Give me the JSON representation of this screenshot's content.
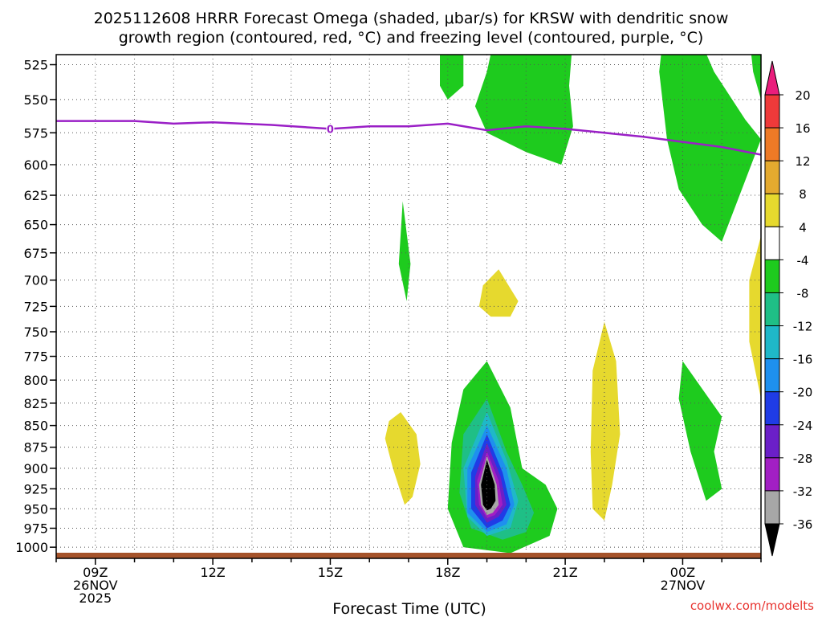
{
  "chart_data": {
    "type": "heatmap",
    "title_line1": "2025112608 HRRR Forecast Omega (shaded, μbar/s) for KRSW with dendritic snow",
    "title_line2": "growth region (contoured, red, °C) and freezing level (contoured, purple, °C)",
    "xlabel": "Forecast Time (UTC)",
    "credit": "coolwx.com/modelts",
    "x_ticks": [
      {
        "hour": 9,
        "lines": [
          "09Z",
          "26NOV",
          "2025"
        ]
      },
      {
        "hour": 12,
        "lines": [
          "12Z"
        ]
      },
      {
        "hour": 15,
        "lines": [
          "15Z"
        ]
      },
      {
        "hour": 18,
        "lines": [
          "18Z"
        ]
      },
      {
        "hour": 21,
        "lines": [
          "21Z"
        ]
      },
      {
        "hour": 24,
        "lines": [
          "00Z",
          "27NOV"
        ]
      }
    ],
    "xlim": [
      8,
      26.0
    ],
    "y_ticks": [
      525,
      550,
      575,
      600,
      625,
      650,
      675,
      700,
      725,
      750,
      775,
      800,
      825,
      850,
      875,
      900,
      925,
      950,
      975,
      1000
    ],
    "ylim_hpa": [
      518,
      1015
    ],
    "colorbar": {
      "labels": [
        "20",
        "16",
        "12",
        "8",
        "4",
        "-4",
        "-8",
        "-12",
        "-16",
        "-20",
        "-24",
        "-28",
        "-32",
        "-36"
      ],
      "colors": [
        "#ef3a3a",
        "#ee7a26",
        "#e4aa2f",
        "#e6d92e",
        "#ffffff",
        "#1ecb1e",
        "#1fbf86",
        "#1fb8c8",
        "#1e90ee",
        "#1f3ce6",
        "#6b1fc8",
        "#a21fc4",
        "#a7a7a7"
      ],
      "top_color": "#ea1d7c",
      "bottom_color": "#000000"
    },
    "freezing_level": {
      "color": "#9a1fc6",
      "label": "0",
      "label_hour": 15.0,
      "points": [
        [
          8,
          566
        ],
        [
          10,
          566
        ],
        [
          11,
          568
        ],
        [
          12,
          567
        ],
        [
          13.5,
          569
        ],
        [
          15,
          572
        ],
        [
          16,
          570
        ],
        [
          17,
          570
        ],
        [
          18,
          568
        ],
        [
          19,
          573
        ],
        [
          20,
          570
        ],
        [
          21,
          572
        ],
        [
          22,
          575
        ],
        [
          23,
          578
        ],
        [
          24,
          582
        ],
        [
          25,
          586
        ],
        [
          26,
          592
        ]
      ]
    },
    "omega_regions": [
      {
        "category": "-8 to -4",
        "color": "#1ecb1e",
        "poly": [
          [
            17.8,
            505
          ],
          [
            18.4,
            505
          ],
          [
            18.4,
            540
          ],
          [
            18.0,
            550
          ],
          [
            17.8,
            540
          ]
        ]
      },
      {
        "category": "-8 to -4",
        "color": "#1ecb1e",
        "poly": [
          [
            19.2,
            505
          ],
          [
            21.2,
            505
          ],
          [
            21.1,
            540
          ],
          [
            21.2,
            570
          ],
          [
            20.9,
            600
          ],
          [
            20.0,
            590
          ],
          [
            19.0,
            575
          ],
          [
            18.7,
            555
          ],
          [
            19.0,
            530
          ]
        ]
      },
      {
        "category": "-8 to -4",
        "color": "#1ecb1e",
        "poly": [
          [
            23.5,
            505
          ],
          [
            24.4,
            505
          ],
          [
            24.8,
            530
          ],
          [
            25.6,
            565
          ],
          [
            26.0,
            580
          ],
          [
            26.0,
            580
          ],
          [
            25.0,
            665
          ],
          [
            24.5,
            650
          ],
          [
            23.9,
            620
          ],
          [
            23.6,
            580
          ],
          [
            23.4,
            530
          ]
        ]
      },
      {
        "category": "-8 to -4",
        "color": "#1ecb1e",
        "poly": [
          [
            25.7,
            505
          ],
          [
            26.0,
            505
          ],
          [
            26.0,
            550
          ],
          [
            25.8,
            530
          ]
        ]
      },
      {
        "category": "-8 to -4",
        "color": "#1ecb1e",
        "poly": [
          [
            16.85,
            630
          ],
          [
            17.05,
            685
          ],
          [
            16.95,
            720
          ],
          [
            16.75,
            685
          ]
        ]
      },
      {
        "category": "-8 to -4",
        "color": "#1ecb1e",
        "poly": [
          [
            24.0,
            780
          ],
          [
            25.0,
            840
          ],
          [
            24.8,
            880
          ],
          [
            25.0,
            925
          ],
          [
            24.6,
            940
          ],
          [
            24.2,
            880
          ],
          [
            23.9,
            820
          ]
        ]
      },
      {
        "category": "-8 to -4",
        "color": "#1ecb1e",
        "poly": [
          [
            19.0,
            780
          ],
          [
            19.6,
            830
          ],
          [
            19.9,
            900
          ],
          [
            20.5,
            920
          ],
          [
            20.8,
            950
          ],
          [
            20.6,
            985
          ],
          [
            19.6,
            1008
          ],
          [
            18.4,
            1000
          ],
          [
            18.0,
            950
          ],
          [
            18.1,
            870
          ],
          [
            18.4,
            810
          ]
        ]
      },
      {
        "category": "-12 to -8",
        "color": "#1fbf86",
        "poly": [
          [
            19.0,
            820
          ],
          [
            19.5,
            880
          ],
          [
            19.9,
            920
          ],
          [
            20.2,
            955
          ],
          [
            20.0,
            980
          ],
          [
            19.4,
            990
          ],
          [
            18.6,
            975
          ],
          [
            18.3,
            930
          ],
          [
            18.4,
            860
          ]
        ]
      },
      {
        "category": "-16 to -12",
        "color": "#1fb8c8",
        "poly": [
          [
            19.0,
            835
          ],
          [
            19.5,
            890
          ],
          [
            19.8,
            940
          ],
          [
            19.6,
            975
          ],
          [
            19.0,
            985
          ],
          [
            18.5,
            960
          ],
          [
            18.4,
            900
          ]
        ]
      },
      {
        "category": "-20 to -16",
        "color": "#1e90ee",
        "poly": [
          [
            19.0,
            850
          ],
          [
            19.5,
            900
          ],
          [
            19.7,
            945
          ],
          [
            19.5,
            970
          ],
          [
            19.0,
            980
          ],
          [
            18.5,
            955
          ],
          [
            18.5,
            900
          ]
        ]
      },
      {
        "category": "-24 to -20",
        "color": "#1f3ce6",
        "poly": [
          [
            19.0,
            860
          ],
          [
            19.4,
            905
          ],
          [
            19.6,
            945
          ],
          [
            19.4,
            965
          ],
          [
            19.0,
            975
          ],
          [
            18.6,
            950
          ],
          [
            18.6,
            905
          ]
        ]
      },
      {
        "category": "-28 to -24",
        "color": "#6b1fc8",
        "poly": [
          [
            19.0,
            870
          ],
          [
            19.35,
            910
          ],
          [
            19.5,
            945
          ],
          [
            19.3,
            960
          ],
          [
            19.0,
            968
          ],
          [
            18.7,
            945
          ],
          [
            18.7,
            910
          ]
        ]
      },
      {
        "category": "-32 to -28",
        "color": "#a21fc4",
        "poly": [
          [
            19.0,
            880
          ],
          [
            19.3,
            915
          ],
          [
            19.4,
            945
          ],
          [
            19.2,
            958
          ],
          [
            19.0,
            962
          ],
          [
            18.8,
            945
          ],
          [
            18.75,
            915
          ]
        ]
      },
      {
        "category": "-36 to -32",
        "color": "#a7a7a7",
        "poly": [
          [
            19.0,
            885
          ],
          [
            19.25,
            920
          ],
          [
            19.3,
            945
          ],
          [
            19.15,
            955
          ],
          [
            19.0,
            958
          ],
          [
            18.85,
            945
          ],
          [
            18.8,
            920
          ]
        ]
      },
      {
        "category": "< -36",
        "color": "#000000",
        "poly": [
          [
            19.0,
            890
          ],
          [
            19.2,
            920
          ],
          [
            19.22,
            940
          ],
          [
            19.1,
            950
          ],
          [
            19.0,
            952
          ],
          [
            18.9,
            945
          ],
          [
            18.85,
            920
          ]
        ]
      },
      {
        "category": "4 to 8",
        "color": "#e6d92e",
        "poly": [
          [
            19.3,
            690
          ],
          [
            19.8,
            720
          ],
          [
            19.6,
            735
          ],
          [
            19.1,
            735
          ],
          [
            18.8,
            725
          ],
          [
            18.9,
            705
          ]
        ]
      },
      {
        "category": "4 to 8",
        "color": "#e6d92e",
        "poly": [
          [
            16.8,
            835
          ],
          [
            17.2,
            860
          ],
          [
            17.3,
            895
          ],
          [
            17.1,
            935
          ],
          [
            16.9,
            945
          ],
          [
            16.6,
            900
          ],
          [
            16.4,
            865
          ],
          [
            16.5,
            845
          ]
        ]
      },
      {
        "category": "4 to 8",
        "color": "#e6d92e",
        "poly": [
          [
            22.0,
            740
          ],
          [
            22.3,
            780
          ],
          [
            22.4,
            860
          ],
          [
            22.2,
            920
          ],
          [
            22.0,
            965
          ],
          [
            21.7,
            950
          ],
          [
            21.65,
            880
          ],
          [
            21.7,
            790
          ]
        ]
      },
      {
        "category": "4 to 8",
        "color": "#e6d92e",
        "poly": [
          [
            26.0,
            660
          ],
          [
            26.0,
            820
          ],
          [
            25.7,
            760
          ],
          [
            25.7,
            700
          ]
        ]
      }
    ],
    "surface_color": "#a5532a"
  }
}
